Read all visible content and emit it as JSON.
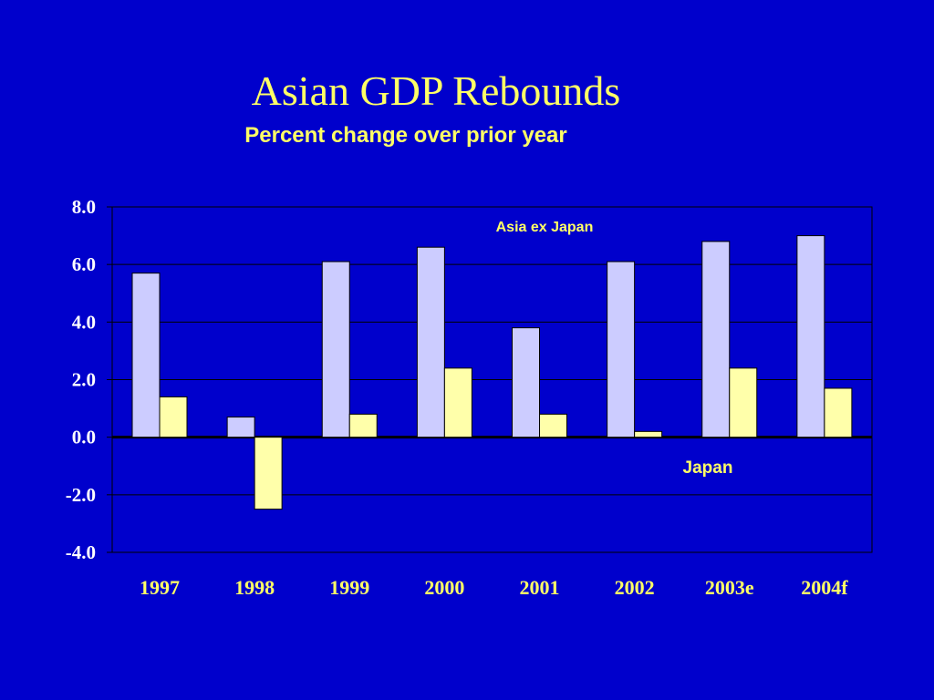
{
  "title": "Asian GDP Rebounds",
  "subtitle": "Percent change over prior year",
  "colors": {
    "background": "#0000cc",
    "title_text": "#ffff66",
    "asia_ex_japan_bar": "#ccccff",
    "japan_bar": "#ffffaa",
    "grid": "#000000",
    "tick_text": "#ffffff"
  },
  "chart_data": {
    "type": "bar",
    "title": "Asian GDP Rebounds",
    "subtitle": "Percent change over prior year",
    "categories": [
      "1997",
      "1998",
      "1999",
      "2000",
      "2001",
      "2002",
      "2003e",
      "2004f"
    ],
    "series": [
      {
        "name": "Asia ex Japan",
        "values": [
          5.7,
          0.7,
          6.1,
          6.6,
          3.8,
          6.1,
          6.8,
          7.0
        ]
      },
      {
        "name": "Japan",
        "values": [
          1.4,
          -2.5,
          0.8,
          2.4,
          0.8,
          0.2,
          2.4,
          1.7
        ]
      }
    ],
    "ylim": [
      -4.0,
      8.0
    ],
    "yticks": [
      "8.0",
      "6.0",
      "4.0",
      "2.0",
      "0.0",
      "-2.0",
      "-4.0"
    ],
    "grid": true,
    "legend": "series labels drawn inside the plot"
  }
}
